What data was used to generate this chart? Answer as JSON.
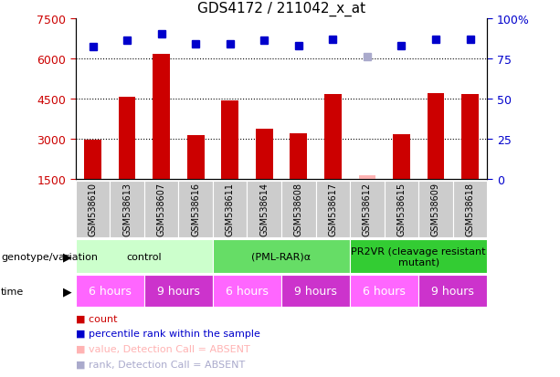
{
  "title": "GDS4172 / 211042_x_at",
  "samples": [
    "GSM538610",
    "GSM538613",
    "GSM538607",
    "GSM538616",
    "GSM538611",
    "GSM538614",
    "GSM538608",
    "GSM538617",
    "GSM538612",
    "GSM538615",
    "GSM538609",
    "GSM538618"
  ],
  "counts": [
    2950,
    4550,
    6150,
    3130,
    4430,
    3380,
    3180,
    4670,
    null,
    3150,
    4680,
    4650
  ],
  "counts_absent": [
    null,
    null,
    null,
    null,
    null,
    null,
    null,
    null,
    1620,
    null,
    null,
    null
  ],
  "percentile_ranks": [
    82,
    86,
    90,
    84,
    84,
    86,
    83,
    87,
    null,
    83,
    87,
    87
  ],
  "percentile_ranks_absent": [
    null,
    null,
    null,
    null,
    null,
    null,
    null,
    null,
    76,
    null,
    null,
    null
  ],
  "ylim_left": [
    1500,
    7500
  ],
  "ylim_right": [
    0,
    100
  ],
  "yticks_left": [
    1500,
    3000,
    4500,
    6000,
    7500
  ],
  "yticks_right": [
    0,
    25,
    50,
    75,
    100
  ],
  "ytick_labels_right": [
    "0",
    "25",
    "50",
    "75",
    "100%"
  ],
  "bar_color": "#cc0000",
  "bar_absent_color": "#ffb3b3",
  "dot_color": "#0000cc",
  "dot_absent_color": "#aaaacc",
  "grid_color": "#000000",
  "bg_color": "#ffffff",
  "plot_bg_color": "#ffffff",
  "xlabel_color": "#cc0000",
  "ylabel_right_color": "#0000cc",
  "sample_box_color": "#cccccc",
  "genotype_groups": [
    {
      "label": "control",
      "start": 0,
      "end": 4,
      "color": "#ccffcc"
    },
    {
      "label": "(PML-RAR)α",
      "start": 4,
      "end": 8,
      "color": "#66dd66"
    },
    {
      "label": "PR2VR (cleavage resistant\nmutant)",
      "start": 8,
      "end": 12,
      "color": "#33cc33"
    }
  ],
  "time_groups": [
    {
      "label": "6 hours",
      "start": 0,
      "end": 2,
      "color": "#ff66ff"
    },
    {
      "label": "9 hours",
      "start": 2,
      "end": 4,
      "color": "#cc33cc"
    },
    {
      "label": "6 hours",
      "start": 4,
      "end": 6,
      "color": "#ff66ff"
    },
    {
      "label": "9 hours",
      "start": 6,
      "end": 8,
      "color": "#cc33cc"
    },
    {
      "label": "6 hours",
      "start": 8,
      "end": 10,
      "color": "#ff66ff"
    },
    {
      "label": "9 hours",
      "start": 10,
      "end": 12,
      "color": "#cc33cc"
    }
  ]
}
